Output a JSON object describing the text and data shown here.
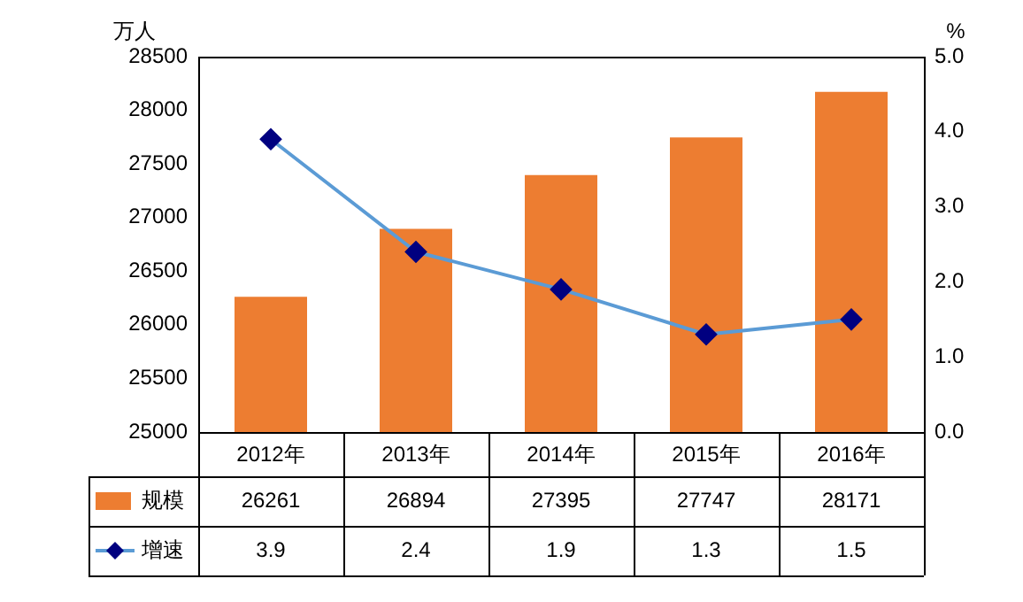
{
  "chart_data": {
    "type": "bar",
    "categories": [
      "2012年",
      "2013年",
      "2014年",
      "2015年",
      "2016年"
    ],
    "series": [
      {
        "name": "规模",
        "color": "#ed7d31",
        "values": [
          26261,
          26894,
          27395,
          27747,
          28171
        ]
      },
      {
        "name": "增速",
        "type": "line",
        "axis": "y2",
        "color": "#5b9bd5",
        "values": [
          3.9,
          2.4,
          1.9,
          1.3,
          1.5
        ]
      }
    ],
    "ylabel": "万人",
    "y2label": "%",
    "ylim": [
      25000,
      28500
    ],
    "yticks": [
      25000,
      25500,
      26000,
      26500,
      27000,
      27500,
      28000,
      28500
    ],
    "y2lim": [
      0,
      5
    ],
    "y2ticks": [
      {
        "value": 0,
        "label": "0.0"
      },
      {
        "value": 1,
        "label": "1.0"
      },
      {
        "value": 2,
        "label": "2.0"
      },
      {
        "value": 3,
        "label": "3.0"
      },
      {
        "value": 4,
        "label": "4.0"
      },
      {
        "value": 5,
        "label": "5.0"
      }
    ],
    "marker": "diamond",
    "line_style": "solid",
    "grid": false,
    "legend": "bottom",
    "data_labels": true
  }
}
